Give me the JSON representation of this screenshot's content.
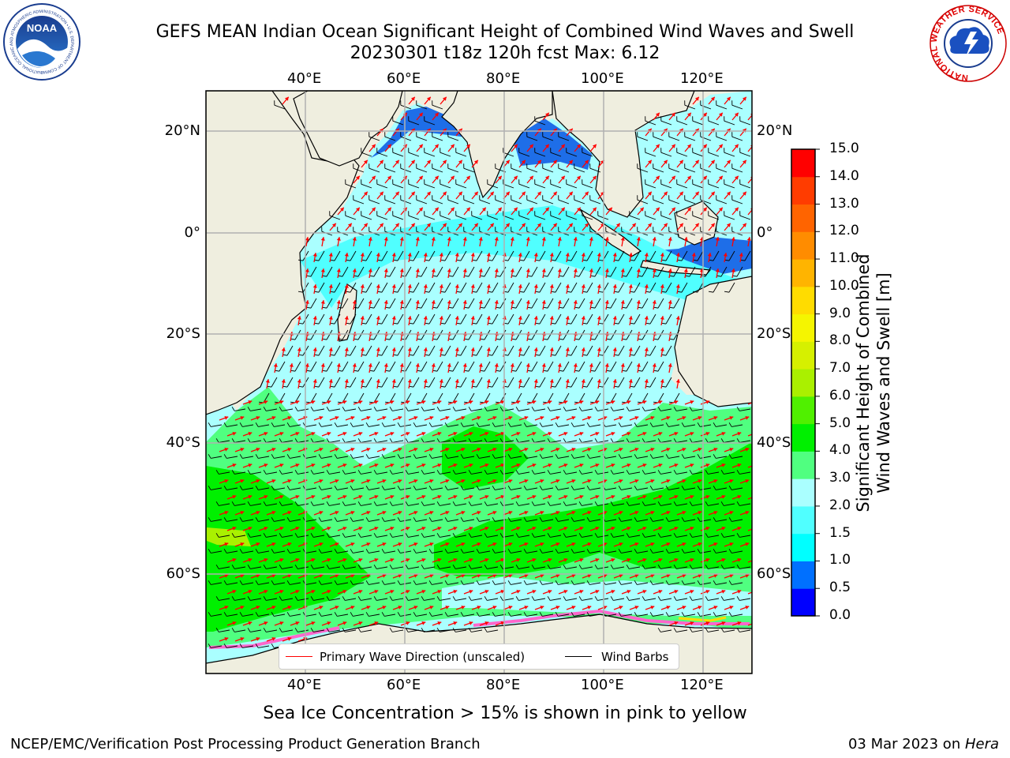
{
  "header": {
    "title_line1": "GEFS MEAN Indian Ocean Significant Height of Combined Wind Waves and Swell",
    "title_line2": "20230301 t18z 120h fcst   Max: 6.12"
  },
  "logos": {
    "noaa_text": "NOAA",
    "noaa_ring_text": "NATIONAL OCEANIC AND ATMOSPHERIC ADMINISTRATION • U.S. DEPARTMENT OF COMMERCE",
    "nws_ring_text": "NATIONAL WEATHER SERVICE"
  },
  "map": {
    "lon_labels": [
      "40°E",
      "60°E",
      "80°E",
      "100°E",
      "120°E"
    ],
    "lat_labels": [
      "20°N",
      "0°",
      "20°S",
      "40°S",
      "60°S"
    ],
    "land_color": "#efeedf",
    "grid_color": "#b0b0b0"
  },
  "legend": {
    "wave_label": "Primary Wave Direction (unscaled)",
    "wave_color": "#ff0000",
    "wind_label": "Wind Barbs",
    "wind_color": "#000000"
  },
  "colorbar": {
    "title_line1": "Significant Height of Combined",
    "title_line2": "Wind Waves and Swell [m]",
    "levels": [
      "0.0",
      "0.5",
      "1.0",
      "1.5",
      "2.0",
      "3.0",
      "4.0",
      "5.0",
      "6.0",
      "7.0",
      "8.0",
      "9.0",
      "10.0",
      "11.0",
      "12.0",
      "13.0",
      "14.0",
      "15.0"
    ],
    "colors": [
      "#0000ff",
      "#0070ff",
      "#00ffff",
      "#50ffff",
      "#aaffff",
      "#50ff80",
      "#00f000",
      "#50f000",
      "#aaf000",
      "#d6f000",
      "#f5f500",
      "#ffdc00",
      "#ffb400",
      "#ff8c00",
      "#ff6400",
      "#ff3c00",
      "#ff0000"
    ]
  },
  "note": "Sea Ice Concentration > 15% is shown in pink to yellow",
  "footer": {
    "left": "NCEP/EMC/Verification Post Processing Product Generation Branch",
    "right_date": "03 Mar 2023 on ",
    "right_host": "Hera"
  }
}
